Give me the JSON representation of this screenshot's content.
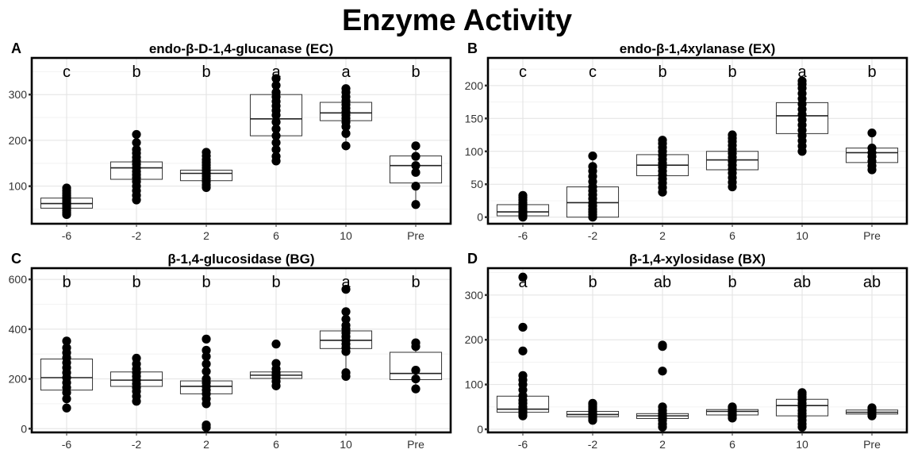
{
  "title": "Enzyme Activity",
  "chart_data": [
    {
      "tag": "A",
      "type": "box",
      "title": "endo-β-D-1,4-glucanase (EC)",
      "categories": [
        "-6",
        "-2",
        "2",
        "6",
        "10",
        "Pre"
      ],
      "ylim": [
        18,
        380
      ],
      "yticks": [
        100,
        200,
        300
      ],
      "grid": true,
      "boxes": [
        {
          "q1": 52,
          "median": 62,
          "q3": 74,
          "whisker_low": 38,
          "whisker_high": 96
        },
        {
          "q1": 115,
          "median": 140,
          "q3": 153,
          "whisker_low": 70,
          "whisker_high": 213
        },
        {
          "q1": 112,
          "median": 128,
          "q3": 135,
          "whisker_low": 97,
          "whisker_high": 174
        },
        {
          "q1": 210,
          "median": 247,
          "q3": 300,
          "whisker_low": 155,
          "whisker_high": 335
        },
        {
          "q1": 243,
          "median": 260,
          "q3": 283,
          "whisker_low": 188,
          "whisker_high": 313
        },
        {
          "q1": 107,
          "median": 145,
          "q3": 166,
          "whisker_low": 60,
          "whisker_high": 188
        }
      ],
      "points": [
        [
          38,
          42,
          47,
          52,
          56,
          60,
          64,
          68,
          72,
          76,
          80,
          85,
          90,
          96
        ],
        [
          70,
          80,
          90,
          100,
          110,
          118,
          125,
          132,
          140,
          148,
          155,
          163,
          172,
          180,
          195,
          213
        ],
        [
          97,
          103,
          110,
          116,
          122,
          128,
          134,
          140,
          146,
          152,
          158,
          166,
          174
        ],
        [
          155,
          165,
          180,
          195,
          210,
          225,
          240,
          255,
          265,
          275,
          285,
          295,
          305,
          320,
          335
        ],
        [
          188,
          215,
          230,
          240,
          248,
          255,
          262,
          270,
          278,
          286,
          295,
          305,
          313
        ],
        [
          60,
          100,
          130,
          145,
          165,
          188
        ]
      ],
      "letters": [
        "c",
        "b",
        "b",
        "a",
        "a",
        "b"
      ]
    },
    {
      "tag": "B",
      "type": "box",
      "title": "endo-β-1,4xylanase (EX)",
      "categories": [
        "-6",
        "-2",
        "2",
        "6",
        "10",
        "Pre"
      ],
      "ylim": [
        -10,
        242
      ],
      "yticks": [
        0,
        50,
        100,
        150,
        200
      ],
      "grid": true,
      "boxes": [
        {
          "q1": 2,
          "median": 8,
          "q3": 19,
          "whisker_low": 0,
          "whisker_high": 33
        },
        {
          "q1": 0,
          "median": 22,
          "q3": 46,
          "whisker_low": 0,
          "whisker_high": 93
        },
        {
          "q1": 63,
          "median": 79,
          "q3": 95,
          "whisker_low": 38,
          "whisker_high": 117
        },
        {
          "q1": 72,
          "median": 87,
          "q3": 100,
          "whisker_low": 46,
          "whisker_high": 125
        },
        {
          "q1": 127,
          "median": 154,
          "q3": 174,
          "whisker_low": 100,
          "whisker_high": 207
        },
        {
          "q1": 83,
          "median": 98,
          "q3": 105,
          "whisker_low": 72,
          "whisker_high": 128
        }
      ],
      "points": [
        [
          0,
          2,
          4,
          6,
          8,
          10,
          13,
          16,
          19,
          22,
          26,
          30,
          33
        ],
        [
          0,
          4,
          8,
          12,
          17,
          22,
          28,
          34,
          40,
          46,
          54,
          62,
          70,
          77,
          93
        ],
        [
          38,
          45,
          52,
          58,
          64,
          70,
          76,
          82,
          88,
          94,
          100,
          106,
          112,
          117
        ],
        [
          46,
          53,
          60,
          67,
          73,
          79,
          85,
          91,
          97,
          103,
          109,
          115,
          120,
          125
        ],
        [
          100,
          108,
          116,
          124,
          132,
          140,
          148,
          156,
          164,
          172,
          180,
          188,
          196,
          202,
          207
        ],
        [
          72,
          78,
          85,
          92,
          98,
          105,
          128
        ]
      ],
      "letters": [
        "c",
        "c",
        "b",
        "b",
        "a",
        "b"
      ]
    },
    {
      "tag": "C",
      "type": "box",
      "title": "β-1,4-glucosidase (BG)",
      "categories": [
        "-6",
        "-2",
        "2",
        "6",
        "10",
        "Pre"
      ],
      "ylim": [
        -15,
        645
      ],
      "yticks": [
        0,
        200,
        400,
        600
      ],
      "grid": true,
      "boxes": [
        {
          "q1": 155,
          "median": 205,
          "q3": 280,
          "whisker_low": 83,
          "whisker_high": 352
        },
        {
          "q1": 170,
          "median": 195,
          "q3": 228,
          "whisker_low": 110,
          "whisker_high": 283
        },
        {
          "q1": 140,
          "median": 170,
          "q3": 192,
          "whisker_low": 100,
          "whisker_high": 290
        },
        {
          "q1": 202,
          "median": 215,
          "q3": 228,
          "whisker_low": 172,
          "whisker_high": 262
        },
        {
          "q1": 322,
          "median": 355,
          "q3": 393,
          "whisker_low": 210,
          "whisker_high": 470
        },
        {
          "q1": 197,
          "median": 222,
          "q3": 307,
          "whisker_low": 160,
          "whisker_high": 345
        }
      ],
      "points": [
        [
          83,
          120,
          145,
          165,
          185,
          205,
          225,
          245,
          265,
          285,
          305,
          325,
          352
        ],
        [
          110,
          130,
          150,
          165,
          180,
          195,
          210,
          225,
          240,
          260,
          283
        ],
        [
          5,
          15,
          100,
          120,
          140,
          155,
          170,
          185,
          200,
          230,
          260,
          290,
          315,
          360
        ],
        [
          172,
          190,
          205,
          215,
          225,
          240,
          262,
          340
        ],
        [
          210,
          225,
          310,
          325,
          340,
          355,
          370,
          385,
          400,
          415,
          440,
          470,
          560
        ],
        [
          160,
          200,
          235,
          330,
          345
        ]
      ],
      "letters": [
        "b",
        "b",
        "b",
        "b",
        "a",
        "b"
      ]
    },
    {
      "tag": "D",
      "type": "box",
      "title": "β-1,4-xylosidase (BX)",
      "categories": [
        "-6",
        "-2",
        "2",
        "6",
        "10",
        "Pre"
      ],
      "ylim": [
        -7,
        360
      ],
      "yticks": [
        0,
        100,
        200,
        300
      ],
      "grid": true,
      "boxes": [
        {
          "q1": 38,
          "median": 45,
          "q3": 74,
          "whisker_low": 30,
          "whisker_high": 120
        },
        {
          "q1": 28,
          "median": 33,
          "q3": 40,
          "whisker_low": 20,
          "whisker_high": 58
        },
        {
          "q1": 24,
          "median": 30,
          "q3": 35,
          "whisker_low": 5,
          "whisker_high": 50
        },
        {
          "q1": 32,
          "median": 40,
          "q3": 44,
          "whisker_low": 25,
          "whisker_high": 50
        },
        {
          "q1": 30,
          "median": 53,
          "q3": 67,
          "whisker_low": 5,
          "whisker_high": 82
        },
        {
          "q1": 34,
          "median": 38,
          "q3": 43,
          "whisker_low": 30,
          "whisker_high": 48
        }
      ],
      "points": [
        [
          30,
          35,
          40,
          45,
          50,
          58,
          65,
          75,
          88,
          100,
          110,
          120,
          175,
          228,
          340
        ],
        [
          20,
          24,
          28,
          32,
          36,
          40,
          45,
          50,
          55,
          58
        ],
        [
          5,
          12,
          20,
          25,
          30,
          35,
          42,
          50,
          130,
          185,
          188
        ],
        [
          25,
          30,
          35,
          40,
          44,
          48,
          50
        ],
        [
          5,
          12,
          20,
          28,
          35,
          42,
          50,
          58,
          66,
          72,
          78,
          82
        ],
        [
          30,
          34,
          38,
          42,
          46,
          48
        ]
      ],
      "letters": [
        "a",
        "b",
        "ab",
        "b",
        "ab",
        "ab"
      ]
    }
  ]
}
